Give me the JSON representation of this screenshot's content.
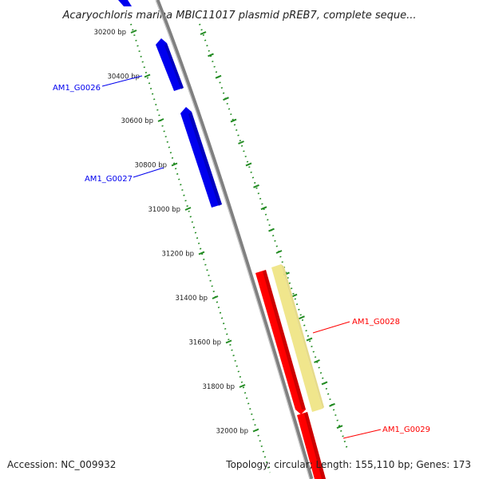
{
  "title": "Acaryochloris marina MBIC11017 plasmid pREB7, complete seque...",
  "accession": "Accession: NC_009932",
  "footer_right": "Topology: circular; Length: 155,110 bp; Genes: 173",
  "ticks": [
    "30200 bp",
    "30400 bp",
    "30600 bp",
    "30800 bp",
    "31000 bp",
    "31200 bp",
    "31400 bp",
    "31600 bp",
    "31800 bp",
    "32000 bp"
  ],
  "colors": {
    "forward_gene": "#0000ee",
    "reverse_gene": "#ff0000",
    "highlight": "#f0e68c",
    "backbone": "#808080",
    "scale": "#228b22"
  },
  "genes": [
    {
      "label": "",
      "strand": "forward",
      "color": "#0000ee"
    },
    {
      "label": "AM1_G0026",
      "strand": "forward",
      "color": "#0000ee"
    },
    {
      "label": "AM1_G0027",
      "strand": "forward",
      "color": "#0000ee"
    },
    {
      "label": "AM1_G0028",
      "strand": "reverse",
      "color": "#ff0000"
    },
    {
      "label": "AM1_G0029",
      "strand": "reverse",
      "color": "#ff0000"
    }
  ]
}
